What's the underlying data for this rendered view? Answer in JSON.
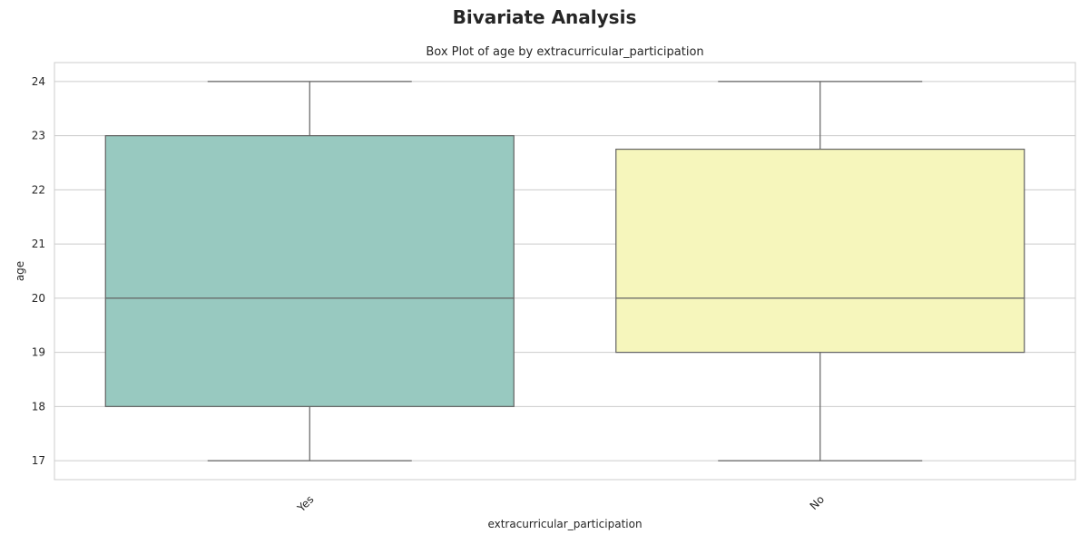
{
  "figure": {
    "suptitle": "Bivariate Analysis"
  },
  "chart_data": {
    "type": "box",
    "title": "Box Plot of age by extracurricular_participation",
    "xlabel": "extracurricular_participation",
    "ylabel": "age",
    "ylim": [
      16.65,
      24.35
    ],
    "yticks": [
      17,
      18,
      19,
      20,
      21,
      22,
      23,
      24
    ],
    "grid": true,
    "categories": [
      "Yes",
      "No"
    ],
    "boxes": [
      {
        "category": "Yes",
        "min": 17,
        "q1": 18,
        "median": 20,
        "q3": 23,
        "max": 24,
        "color": "#98c9c0"
      },
      {
        "category": "No",
        "min": 17,
        "q1": 19,
        "median": 20,
        "q3": 22.75,
        "max": 24,
        "color": "#f6f6bc"
      }
    ]
  }
}
